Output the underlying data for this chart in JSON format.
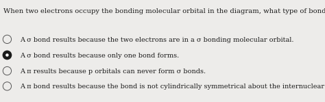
{
  "background_color": "#edecea",
  "question": "When two electrons occupy the bonding molecular orbital in the diagram, what type of bond results? Why?",
  "options": [
    {
      "text": "A σ bond results because the two electrons are in a σ bonding molecular orbital.",
      "selected": false
    },
    {
      "text": "A σ bond results because only one bond forms.",
      "selected": true
    },
    {
      "text": "A π results because p orbitals can never form σ bonds.",
      "selected": false
    },
    {
      "text": "A π bond results because the bond is not cylindrically symmetrical about the internuclear axis.",
      "selected": false
    }
  ],
  "question_fontsize": 7.2,
  "option_fontsize": 7.0,
  "text_color": "#1a1a1a",
  "radio_unselected_edgecolor": "#555555",
  "radio_selected_fill": "#1a1a1a",
  "radio_size": 0.013,
  "fig_width": 4.74,
  "fig_height": 1.49,
  "dpi": 100
}
